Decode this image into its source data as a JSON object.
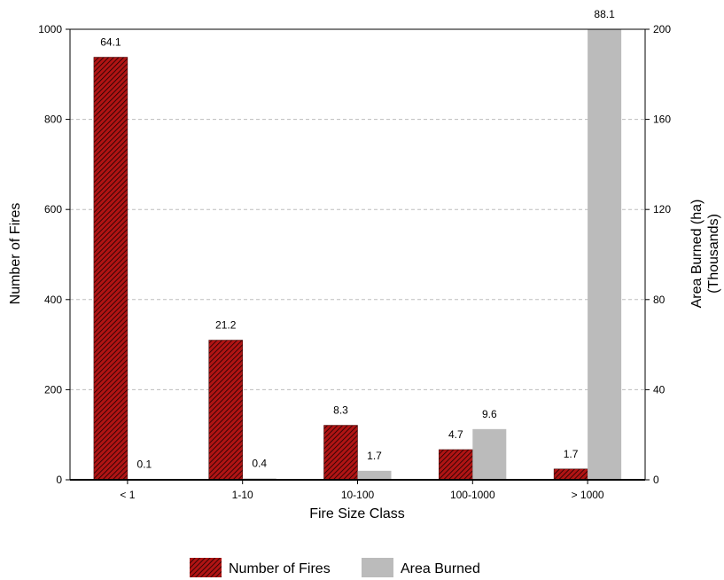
{
  "chart_data": {
    "type": "bar",
    "categories": [
      "< 1",
      "1-10",
      "10-100",
      "100-1000",
      "> 1000"
    ],
    "series": [
      {
        "name": "Number of Fires",
        "axis": "left",
        "values": [
          938,
          310,
          121,
          67,
          24
        ],
        "data_labels": [
          "64.1",
          "21.2",
          "8.3",
          "4.7",
          "1.7"
        ],
        "color": "#b01414",
        "pattern": "diagonal-hatch"
      },
      {
        "name": "Area Burned",
        "axis": "right",
        "values": [
          0.2,
          0.6,
          4,
          22.5,
          200
        ],
        "data_labels": [
          "0.1",
          "0.4",
          "1.7",
          "9.6",
          "88.1"
        ],
        "color": "#bbbbbb"
      }
    ],
    "xlabel": "Fire Size Class",
    "ylabel": "Number of Fires",
    "y2label_line1": "Area Burned (ha)",
    "y2label_line2": "(Thousands)",
    "ylim": [
      0,
      1000
    ],
    "y2lim": [
      0,
      200
    ],
    "yticks": [
      "0",
      "200",
      "400",
      "600",
      "800",
      "1000"
    ],
    "y2ticks": [
      "0",
      "40",
      "80",
      "120",
      "160",
      "200"
    ],
    "grid": true,
    "legend_position": "bottom-center"
  }
}
